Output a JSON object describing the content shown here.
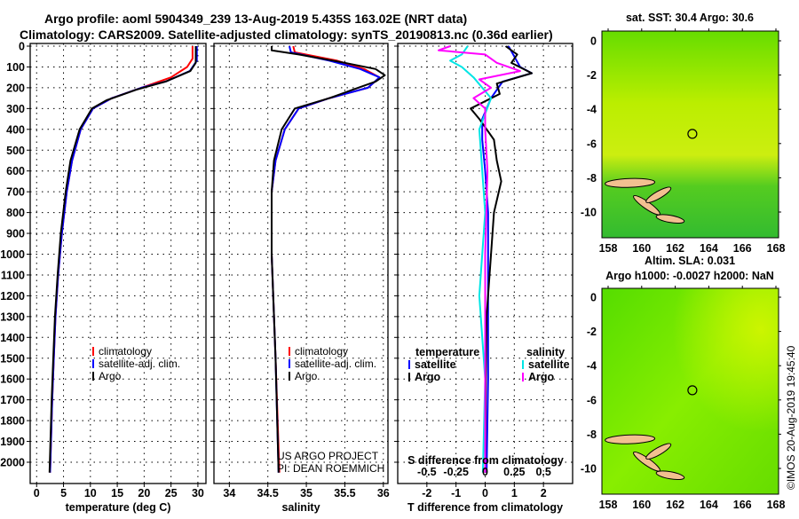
{
  "header": {
    "line1": "Argo profile: aoml 5904349_239 13-Aug-2019 5.435S 163.02E (NRT data)",
    "line2": "Climatology: CARS2009. Satellite-adjusted climatology: synTS_20190813.nc (0.36d earlier)"
  },
  "credits": {
    "project": "US ARGO PROJECT",
    "pi": "PI: DEAN ROEMMICH",
    "stamp": "©IMOS 20-Aug-2019 19:45:40"
  },
  "colors": {
    "climatology": "#ff0000",
    "satellite": "#0000ff",
    "argo": "#000000",
    "sal_satellite": "#00e5e5",
    "sal_argo": "#ff00ff",
    "land": "#f2c090"
  },
  "chart_data": [
    {
      "type": "line",
      "id": "temperature",
      "xlabel": "temperature (deg C)",
      "ylabel": "",
      "xlim": [
        -1.2,
        31.5
      ],
      "ylim": [
        2100,
        0
      ],
      "xticks": [
        0,
        5,
        10,
        15,
        20,
        25,
        30
      ],
      "yticks": [
        0,
        100,
        200,
        300,
        400,
        500,
        600,
        700,
        800,
        900,
        1000,
        1100,
        1200,
        1300,
        1400,
        1500,
        1600,
        1700,
        1800,
        1900,
        2000
      ],
      "grid": true,
      "legend": [
        "climatology",
        "satellite-adj. clim.",
        "Argo"
      ],
      "series": [
        {
          "name": "climatology",
          "color": "#ff0000",
          "points": [
            [
              0,
              29.0
            ],
            [
              60,
              29.0
            ],
            [
              100,
              28.0
            ],
            [
              150,
              25
            ],
            [
              200,
              19.5
            ],
            [
              250,
              14
            ],
            [
              300,
              10.5
            ],
            [
              400,
              8.2
            ],
            [
              550,
              6.6
            ],
            [
              700,
              5.6
            ],
            [
              900,
              4.7
            ],
            [
              1100,
              4.0
            ],
            [
              1300,
              3.5
            ],
            [
              1500,
              3.2
            ],
            [
              1700,
              2.9
            ],
            [
              2050,
              2.5
            ]
          ]
        },
        {
          "name": "satellite-adj. clim.",
          "color": "#0000ff",
          "points": [
            [
              0,
              29.8
            ],
            [
              70,
              29.8
            ],
            [
              120,
              28.5
            ],
            [
              170,
              24
            ],
            [
              200,
              19.5
            ],
            [
              250,
              14
            ],
            [
              300,
              10.5
            ],
            [
              400,
              8.2
            ],
            [
              550,
              6.6
            ],
            [
              700,
              5.6
            ],
            [
              900,
              4.7
            ],
            [
              1100,
              4.0
            ],
            [
              1300,
              3.5
            ],
            [
              1500,
              3.2
            ],
            [
              1700,
              2.9
            ],
            [
              2050,
              2.5
            ]
          ]
        },
        {
          "name": "Argo",
          "color": "#000000",
          "points": [
            [
              0,
              29.6
            ],
            [
              80,
              29.6
            ],
            [
              120,
              28.6
            ],
            [
              170,
              24
            ],
            [
              210,
              18.5
            ],
            [
              260,
              13
            ],
            [
              300,
              10.3
            ],
            [
              400,
              8.0
            ],
            [
              550,
              6.3
            ],
            [
              700,
              5.4
            ],
            [
              900,
              4.5
            ],
            [
              1100,
              3.9
            ],
            [
              1300,
              3.4
            ],
            [
              1500,
              3.1
            ],
            [
              1700,
              2.8
            ],
            [
              2050,
              2.4
            ]
          ]
        }
      ]
    },
    {
      "type": "line",
      "id": "salinity",
      "xlabel": "salinity",
      "ylabel": "",
      "xlim": [
        33.8,
        36.06
      ],
      "ylim": [
        2100,
        0
      ],
      "xticks": [
        34,
        34.5,
        35,
        35.5,
        36
      ],
      "grid": true,
      "legend": [
        "climatology",
        "satellite-adj. clim.",
        "Argo"
      ],
      "series": [
        {
          "name": "climatology",
          "color": "#ff0000",
          "points": [
            [
              0,
              34.83
            ],
            [
              30,
              34.85
            ],
            [
              70,
              35.4
            ],
            [
              110,
              35.75
            ],
            [
              150,
              35.95
            ],
            [
              200,
              35.8
            ],
            [
              250,
              35.3
            ],
            [
              300,
              34.9
            ],
            [
              400,
              34.72
            ],
            [
              550,
              34.6
            ],
            [
              700,
              34.55
            ],
            [
              1000,
              34.55
            ],
            [
              1500,
              34.6
            ],
            [
              2050,
              34.65
            ]
          ]
        },
        {
          "name": "satellite-adj. clim.",
          "color": "#0000ff",
          "points": [
            [
              0,
              34.78
            ],
            [
              30,
              34.8
            ],
            [
              70,
              35.3
            ],
            [
              110,
              35.7
            ],
            [
              150,
              35.95
            ],
            [
              200,
              35.8
            ],
            [
              250,
              35.3
            ],
            [
              300,
              34.9
            ],
            [
              400,
              34.72
            ],
            [
              550,
              34.6
            ],
            [
              700,
              34.55
            ],
            [
              1000,
              34.55
            ],
            [
              1500,
              34.6
            ],
            [
              2050,
              34.64
            ]
          ]
        },
        {
          "name": "Argo",
          "color": "#000000",
          "points": [
            [
              0,
              34.55
            ],
            [
              20,
              34.55
            ],
            [
              40,
              34.9
            ],
            [
              80,
              35.5
            ],
            [
              110,
              35.9
            ],
            [
              140,
              36.02
            ],
            [
              170,
              35.9
            ],
            [
              210,
              35.6
            ],
            [
              250,
              35.3
            ],
            [
              300,
              34.85
            ],
            [
              400,
              34.68
            ],
            [
              550,
              34.58
            ],
            [
              700,
              34.55
            ],
            [
              1000,
              34.55
            ],
            [
              1500,
              34.6
            ],
            [
              2050,
              34.64
            ]
          ]
        }
      ]
    },
    {
      "type": "line",
      "id": "difference",
      "xlabel": "T difference from climatology",
      "x2label": "S difference from climatology",
      "xlim": [
        -3,
        3
      ],
      "ylim": [
        2100,
        0
      ],
      "xticks": [
        -2,
        -1,
        0,
        1,
        2
      ],
      "x2ticks": [
        -0.5,
        -0.25,
        0,
        0.25,
        0.5
      ],
      "grid": true,
      "legend_temperature": {
        "title": "temperature",
        "items": [
          "satellite",
          "Argo"
        ]
      },
      "legend_salinity": {
        "title": "salinity",
        "items": [
          "satellite",
          "Argo"
        ]
      },
      "series": [
        {
          "name": "temperature satellite",
          "color": "#0000ff",
          "points": [
            [
              0,
              0.8
            ],
            [
              50,
              1.0
            ],
            [
              100,
              1.2
            ],
            [
              130,
              1.6
            ],
            [
              170,
              0.6
            ],
            [
              250,
              0.2
            ],
            [
              350,
              -0.1
            ],
            [
              450,
              -0.1
            ],
            [
              600,
              0.0
            ],
            [
              800,
              0.1
            ],
            [
              1200,
              0.1
            ],
            [
              1600,
              0.1
            ],
            [
              2050,
              0.05
            ]
          ]
        },
        {
          "name": "temperature Argo",
          "color": "#000000",
          "points": [
            [
              0,
              0.7
            ],
            [
              40,
              1.1
            ],
            [
              80,
              0.9
            ],
            [
              130,
              1.6
            ],
            [
              180,
              0.4
            ],
            [
              230,
              0.5
            ],
            [
              300,
              -0.5
            ],
            [
              350,
              -0.2
            ],
            [
              450,
              0.3
            ],
            [
              550,
              0.4
            ],
            [
              650,
              0.55
            ],
            [
              800,
              0.3
            ],
            [
              1000,
              0.2
            ],
            [
              1300,
              0.05
            ],
            [
              1600,
              0.02
            ],
            [
              2050,
              0.0
            ]
          ]
        },
        {
          "name": "salinity satellite",
          "color": "#00e5e5",
          "points": [
            [
              0,
              -0.15
            ],
            [
              40,
              -0.2
            ],
            [
              70,
              -0.3
            ],
            [
              100,
              -0.2
            ],
            [
              150,
              -0.1
            ],
            [
              250,
              0.05
            ],
            [
              400,
              -0.05
            ],
            [
              800,
              0.0
            ],
            [
              1200,
              -0.05
            ],
            [
              1600,
              0.0
            ],
            [
              2050,
              -0.02
            ]
          ]
        },
        {
          "name": "salinity Argo",
          "color": "#ff00ff",
          "points": [
            [
              0,
              -0.3
            ],
            [
              20,
              -0.4
            ],
            [
              40,
              0.0
            ],
            [
              80,
              0.1
            ],
            [
              120,
              0.3
            ],
            [
              160,
              -0.05
            ],
            [
              200,
              0.05
            ],
            [
              250,
              -0.1
            ],
            [
              300,
              0.0
            ],
            [
              400,
              0.0
            ],
            [
              600,
              0.02
            ],
            [
              1000,
              0.0
            ],
            [
              2050,
              0.0
            ]
          ]
        }
      ]
    },
    {
      "type": "heatmap",
      "id": "sst-map",
      "title": "sat. SST: 30.4 Argo: 30.6",
      "xlim": [
        158,
        168
      ],
      "ylim": [
        -11.5,
        0.6
      ],
      "xticks": [
        158,
        160,
        162,
        164,
        166,
        168
      ],
      "yticks": [
        0,
        -2,
        -4,
        -6,
        -8,
        -10
      ],
      "float_position": [
        163.02,
        -5.435
      ]
    },
    {
      "type": "heatmap",
      "id": "sla-map",
      "title": "Altim. SLA: 0.031",
      "subtitle": "Argo h1000: -0.0027 h2000: NaN",
      "xlim": [
        158,
        168
      ],
      "ylim": [
        -11.5,
        0.6
      ],
      "xticks": [
        158,
        160,
        162,
        164,
        166,
        168
      ],
      "yticks": [
        0,
        -2,
        -4,
        -6,
        -8,
        -10
      ],
      "float_position": [
        163.02,
        -5.435
      ]
    }
  ]
}
